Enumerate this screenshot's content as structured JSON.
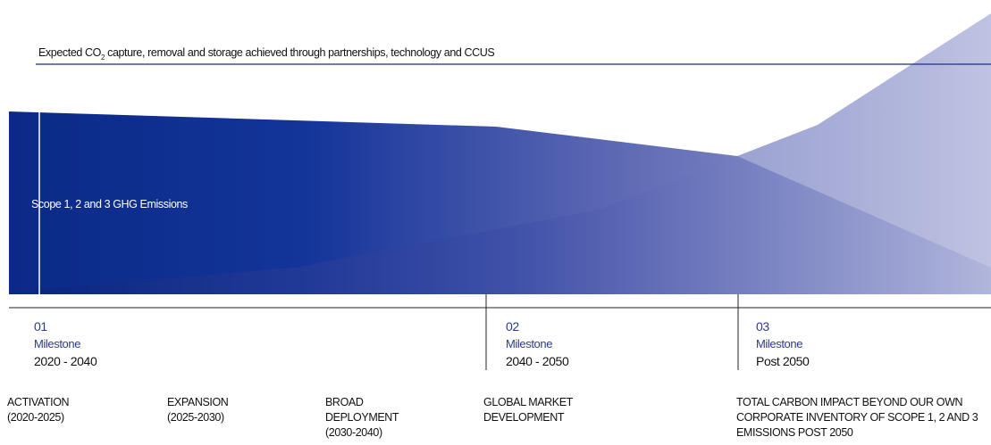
{
  "header": {
    "caption_parts": [
      "Expected CO",
      "2",
      " capture, removal and storage achieved through partnerships, technology and CCUS"
    ]
  },
  "emissions_label": "Scope 1, 2 and 3 GHG Emissions",
  "milestones": [
    {
      "number": "01",
      "label": "Milestone",
      "period": "2020 - 2040"
    },
    {
      "number": "02",
      "label": "Milestone",
      "period": "2040 - 2050"
    },
    {
      "number": "03",
      "label": "Milestone",
      "period": "Post 2050"
    }
  ],
  "phases": [
    {
      "lines": [
        "ACTIVATION",
        "(2020-2025)"
      ]
    },
    {
      "lines": [
        "EXPANSION",
        "(2025-2030)"
      ]
    },
    {
      "lines": [
        "BROAD",
        "DEPLOYMENT",
        "(2030-2040)"
      ]
    },
    {
      "lines": [
        "GLOBAL MARKET",
        "DEVELOPMENT"
      ]
    },
    {
      "lines": [
        "TOTAL CARBON IMPACT BEYOND OUR OWN",
        "CORPORATE INVENTORY OF SCOPE 1, 2 AND 3",
        "EMISSIONS POST 2050"
      ]
    }
  ]
}
